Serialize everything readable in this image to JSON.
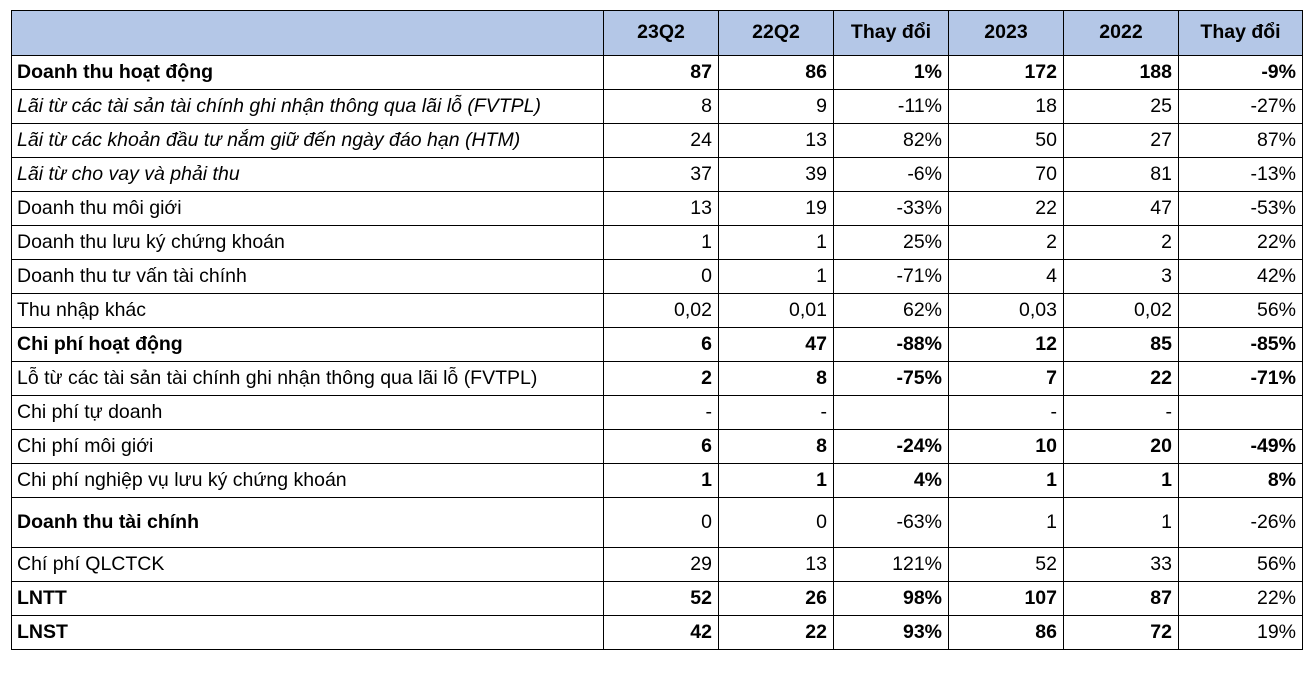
{
  "table": {
    "headers": [
      "",
      "23Q2",
      "22Q2",
      "Thay đổi",
      "2023",
      "2022",
      "Thay đổi"
    ],
    "rows": [
      {
        "label": "Doanh thu hoạt động",
        "values": [
          "87",
          "86",
          "1%",
          "172",
          "188",
          "-9%"
        ],
        "style": "bold"
      },
      {
        "label": "Lãi từ các tài sản tài chính ghi nhận thông qua lãi lỗ (FVTPL)",
        "values": [
          "8",
          "9",
          "-11%",
          "18",
          "25",
          "-27%"
        ],
        "style": "italic"
      },
      {
        "label": "Lãi từ các khoản đầu tư nắm giữ đến ngày đáo hạn (HTM)",
        "values": [
          "24",
          "13",
          "82%",
          "50",
          "27",
          "87%"
        ],
        "style": "italic"
      },
      {
        "label": "Lãi từ cho vay và phải thu",
        "values": [
          "37",
          "39",
          "-6%",
          "70",
          "81",
          "-13%"
        ],
        "style": "italic"
      },
      {
        "label": "Doanh thu môi giới",
        "values": [
          "13",
          "19",
          "-33%",
          "22",
          "47",
          "-53%"
        ],
        "style": "normal"
      },
      {
        "label": "Doanh thu lưu ký chứng khoán",
        "values": [
          "1",
          "1",
          "25%",
          "2",
          "2",
          "22%"
        ],
        "style": "normal"
      },
      {
        "label": "Doanh thu tư vấn tài chính",
        "values": [
          "0",
          "1",
          "-71%",
          "4",
          "3",
          "42%"
        ],
        "style": "normal"
      },
      {
        "label": "Thu nhập khác",
        "values": [
          "0,02",
          "0,01",
          "62%",
          "0,03",
          "0,02",
          "56%"
        ],
        "style": "normal"
      },
      {
        "label": "Chi phí hoạt động",
        "values": [
          "6",
          "47",
          "-88%",
          "12",
          "85",
          "-85%"
        ],
        "style": "bold"
      },
      {
        "label": "Lỗ từ các tài sản tài chính ghi nhận thông qua lãi lỗ (FVTPL)",
        "values": [
          "2",
          "8",
          "-75%",
          "7",
          "22",
          "-71%"
        ],
        "style": "numbold"
      },
      {
        "label": "Chi phí tự doanh",
        "values": [
          "-",
          "-",
          "",
          "-",
          "-",
          ""
        ],
        "style": "normal"
      },
      {
        "label": "Chi phí môi giới",
        "values": [
          "6",
          "8",
          "-24%",
          "10",
          "20",
          "-49%"
        ],
        "style": "numbold"
      },
      {
        "label": "Chi phí nghiệp vụ lưu ký chứng khoán",
        "values": [
          "1",
          "1",
          "4%",
          "1",
          "1",
          "8%"
        ],
        "style": "numbold"
      },
      {
        "label": "Doanh thu tài chính",
        "values": [
          "0",
          "0",
          "-63%",
          "1",
          "1",
          "-26%"
        ],
        "style": "labelbold-tall"
      },
      {
        "label": "Chí phí QLCTCK",
        "values": [
          "29",
          "13",
          "121%",
          "52",
          "33",
          "56%"
        ],
        "style": "normal"
      },
      {
        "label": "LNTT",
        "values": [
          "52",
          "26",
          "98%",
          "107",
          "87",
          "22%"
        ],
        "style": "bold-lastnormal"
      },
      {
        "label": "LNST",
        "values": [
          "42",
          "22",
          "93%",
          "86",
          "72",
          "19%"
        ],
        "style": "bold-lastnormal"
      }
    ]
  }
}
